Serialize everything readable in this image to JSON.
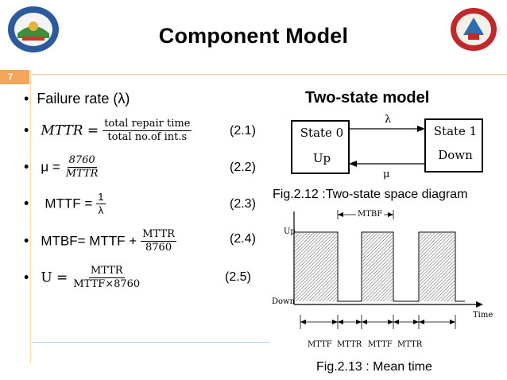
{
  "title": "Component Model",
  "slide_number": "7",
  "bullets": {
    "b1": "Failure rate (λ)",
    "b2_lhs": "MTTR =",
    "b2_num": "total repair time",
    "b2_den": "total no.of int.s",
    "b2_eq": "(2.1)",
    "b3_lhs": "μ =",
    "b3_num": "8760",
    "b3_den": "MTTR",
    "b3_eq": "(2.2)",
    "b4_lhs": "MTTF =",
    "b4_num": "1",
    "b4_den": "λ",
    "b4_eq": "(2.3)",
    "b5_lhs": "MTBF= MTTF +",
    "b5_num": "MTTR",
    "b5_den": "8760",
    "b5_eq": "(2.4)",
    "b6_lhs": "U =",
    "b6_num": "MTTR",
    "b6_den": "MTTF×8760",
    "b6_eq": "(2.5)"
  },
  "two_state": {
    "heading": "Two-state model",
    "state0_name": "State 0",
    "state0_status": "Up",
    "state1_name": "State 1",
    "state1_status": "Down",
    "lambda": "λ",
    "mu": "μ",
    "caption": "Fig.2.12 :Two-state space diagram"
  },
  "mean_time": {
    "mtbf_label": "MTBF",
    "up_label": "Up",
    "down_label": "Down",
    "time_label": "Time",
    "axis_labels": [
      "MTTF",
      "MTTR",
      "MTTF",
      "MTTR"
    ],
    "caption": "Fig.2.13 : Mean time"
  }
}
